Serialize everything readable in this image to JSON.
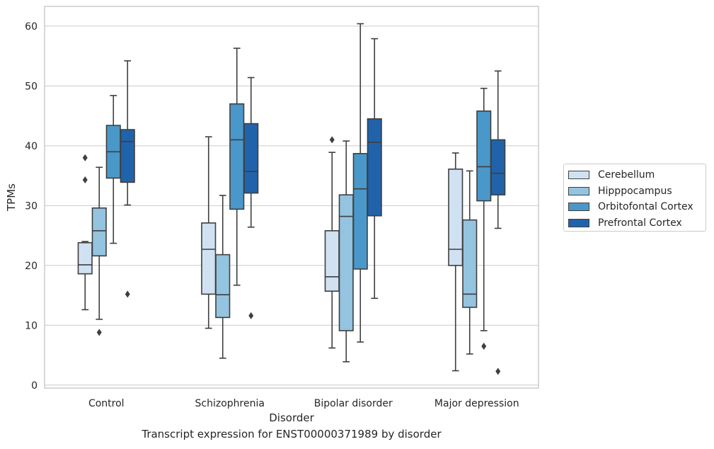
{
  "chart_data": {
    "type": "box",
    "xlabel": "Disorder",
    "ylabel": "TPMs",
    "caption": "Transcript expression for ENST00000371989 by disorder",
    "categories": [
      "Control",
      "Schizophrenia",
      "Bipolar disorder",
      "Major depression"
    ],
    "ylim": [
      -0.5,
      63.3
    ],
    "yticks": [
      0,
      10,
      20,
      30,
      40,
      50,
      60
    ],
    "grid": "horizontal",
    "legend_position": "right",
    "series": [
      {
        "name": "Cerebellum",
        "color": "#d0e1f2",
        "boxes": [
          {
            "whislo": 12.6,
            "q1": 18.6,
            "med": 20.1,
            "q3": 23.8,
            "whishi": 24.0,
            "fliers": [
              38.0,
              34.3
            ]
          },
          {
            "whislo": 9.5,
            "q1": 15.2,
            "med": 22.7,
            "q3": 27.1,
            "whishi": 41.5,
            "fliers": []
          },
          {
            "whislo": 6.2,
            "q1": 15.7,
            "med": 18.1,
            "q3": 25.8,
            "whishi": 38.9,
            "fliers": [
              41.0
            ]
          },
          {
            "whislo": 2.4,
            "q1": 20.0,
            "med": 22.7,
            "q3": 36.1,
            "whishi": 38.8,
            "fliers": []
          }
        ]
      },
      {
        "name": "Hipppocampus",
        "color": "#94c4df",
        "boxes": [
          {
            "whislo": 11.0,
            "q1": 21.6,
            "med": 25.8,
            "q3": 29.6,
            "whishi": 36.4,
            "fliers": [
              8.8
            ]
          },
          {
            "whislo": 4.5,
            "q1": 11.3,
            "med": 15.1,
            "q3": 21.8,
            "whishi": 31.7,
            "fliers": []
          },
          {
            "whislo": 3.9,
            "q1": 9.1,
            "med": 28.2,
            "q3": 31.8,
            "whishi": 40.8,
            "fliers": []
          },
          {
            "whislo": 5.2,
            "q1": 13.0,
            "med": 15.2,
            "q3": 27.6,
            "whishi": 35.8,
            "fliers": []
          }
        ]
      },
      {
        "name": "Orbitofontal Cortex",
        "color": "#4a98c9",
        "boxes": [
          {
            "whislo": 23.7,
            "q1": 34.6,
            "med": 39.0,
            "q3": 43.4,
            "whishi": 48.4,
            "fliers": []
          },
          {
            "whislo": 16.7,
            "q1": 29.4,
            "med": 41.0,
            "q3": 47.0,
            "whishi": 56.3,
            "fliers": []
          },
          {
            "whislo": 7.2,
            "q1": 19.4,
            "med": 32.8,
            "q3": 38.7,
            "whishi": 60.4,
            "fliers": []
          },
          {
            "whislo": 9.1,
            "q1": 30.8,
            "med": 36.5,
            "q3": 45.8,
            "whishi": 49.6,
            "fliers": [
              6.5
            ]
          }
        ]
      },
      {
        "name": "Prefrontal Cortex",
        "color": "#2163aa",
        "boxes": [
          {
            "whislo": 30.1,
            "q1": 33.9,
            "med": 40.7,
            "q3": 42.7,
            "whishi": 54.2,
            "fliers": [
              15.2
            ]
          },
          {
            "whislo": 26.4,
            "q1": 32.1,
            "med": 35.7,
            "q3": 43.7,
            "whishi": 51.4,
            "fliers": [
              11.6
            ]
          },
          {
            "whislo": 14.5,
            "q1": 28.3,
            "med": 40.6,
            "q3": 44.5,
            "whishi": 57.9,
            "fliers": []
          },
          {
            "whislo": 26.2,
            "q1": 31.8,
            "med": 35.4,
            "q3": 41.0,
            "whishi": 52.5,
            "fliers": [
              2.3
            ]
          }
        ]
      }
    ]
  }
}
